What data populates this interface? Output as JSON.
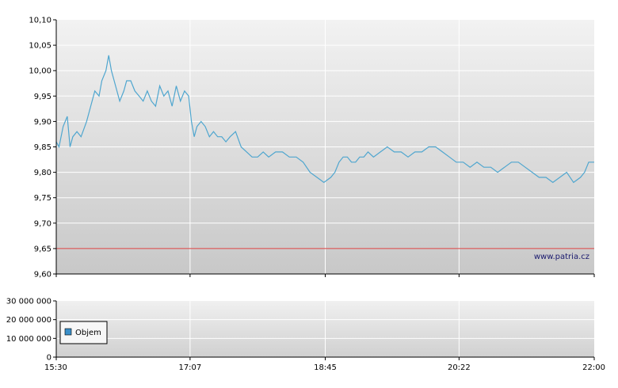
{
  "watermark": "www.patria.cz",
  "colors": {
    "price_line": "#4fa6cf",
    "reference_line": "#d63a3a",
    "grid": "#ffffff",
    "axis": "#000000",
    "legend_swatch": "#3a8fc9"
  },
  "chart_data": [
    {
      "type": "line",
      "title": "",
      "xlabel": "",
      "ylabel": "",
      "ylim": [
        9.6,
        10.1
      ],
      "y_ticks": [
        "10,10",
        "10,05",
        "10,00",
        "9,95",
        "9,90",
        "9,85",
        "9,80",
        "9,75",
        "9,70",
        "9,65",
        "9,60"
      ],
      "x_ticks": [
        "15:30",
        "17:07",
        "18:45",
        "20:22",
        "22:00"
      ],
      "x_range": [
        "15:30",
        "22:00"
      ],
      "grid": true,
      "reference_line": {
        "value": 9.65
      },
      "series": [
        {
          "x": [
            "15:30",
            "15:32",
            "15:35",
            "15:38",
            "15:40",
            "15:42",
            "15:45",
            "15:48",
            "15:52",
            "15:55",
            "15:58",
            "16:01",
            "16:03",
            "16:06",
            "16:08",
            "16:10",
            "16:12",
            "16:14",
            "16:16",
            "16:19",
            "16:21",
            "16:24",
            "16:27",
            "16:30",
            "16:33",
            "16:36",
            "16:39",
            "16:42",
            "16:45",
            "16:48",
            "16:51",
            "16:54",
            "16:57",
            "17:00",
            "17:03",
            "17:06",
            "17:08",
            "17:10",
            "17:12",
            "17:15",
            "17:18",
            "17:21",
            "17:24",
            "17:27",
            "17:30",
            "17:33",
            "17:36",
            "17:40",
            "17:44",
            "17:48",
            "17:52",
            "17:56",
            "18:00",
            "18:04",
            "18:09",
            "18:14",
            "18:19",
            "18:24",
            "18:29",
            "18:34",
            "18:39",
            "18:44",
            "18:49",
            "18:52",
            "18:55",
            "18:58",
            "19:01",
            "19:04",
            "19:07",
            "19:10",
            "19:13",
            "19:16",
            "19:20",
            "19:25",
            "19:30",
            "19:35",
            "19:40",
            "19:45",
            "19:50",
            "19:55",
            "20:00",
            "20:05",
            "20:10",
            "20:15",
            "20:20",
            "20:25",
            "20:30",
            "20:35",
            "20:40",
            "20:45",
            "20:50",
            "20:55",
            "21:00",
            "21:05",
            "21:10",
            "21:15",
            "21:20",
            "21:25",
            "21:30",
            "21:35",
            "21:40",
            "21:45",
            "21:50",
            "21:53",
            "21:56",
            "22:00"
          ],
          "values": [
            9.86,
            9.85,
            9.89,
            9.91,
            9.85,
            9.87,
            9.88,
            9.87,
            9.9,
            9.93,
            9.96,
            9.95,
            9.98,
            10.0,
            10.03,
            10.0,
            9.98,
            9.96,
            9.94,
            9.96,
            9.98,
            9.98,
            9.96,
            9.95,
            9.94,
            9.96,
            9.94,
            9.93,
            9.97,
            9.95,
            9.96,
            9.93,
            9.97,
            9.94,
            9.96,
            9.95,
            9.9,
            9.87,
            9.89,
            9.9,
            9.89,
            9.87,
            9.88,
            9.87,
            9.87,
            9.86,
            9.87,
            9.88,
            9.85,
            9.84,
            9.83,
            9.83,
            9.84,
            9.83,
            9.84,
            9.84,
            9.83,
            9.83,
            9.82,
            9.8,
            9.79,
            9.78,
            9.79,
            9.8,
            9.82,
            9.83,
            9.83,
            9.82,
            9.82,
            9.83,
            9.83,
            9.84,
            9.83,
            9.84,
            9.85,
            9.84,
            9.84,
            9.83,
            9.84,
            9.84,
            9.85,
            9.85,
            9.84,
            9.83,
            9.82,
            9.82,
            9.81,
            9.82,
            9.81,
            9.81,
            9.8,
            9.81,
            9.82,
            9.82,
            9.81,
            9.8,
            9.79,
            9.79,
            9.78,
            9.79,
            9.8,
            9.78,
            9.79,
            9.8,
            9.82,
            9.82
          ]
        }
      ]
    },
    {
      "type": "bar",
      "title": "",
      "xlabel": "",
      "ylabel": "",
      "ylim": [
        0,
        30000000
      ],
      "y_ticks": [
        "30 000 000",
        "20 000 000",
        "10 000 000",
        "0"
      ],
      "x_ticks": [
        "15:30",
        "17:07",
        "18:45",
        "20:22",
        "22:00"
      ],
      "legend": {
        "placement": "bottom-left",
        "entries": [
          "Objem"
        ]
      },
      "grid": true,
      "series": [
        {
          "name": "Objem",
          "values": []
        }
      ]
    }
  ]
}
